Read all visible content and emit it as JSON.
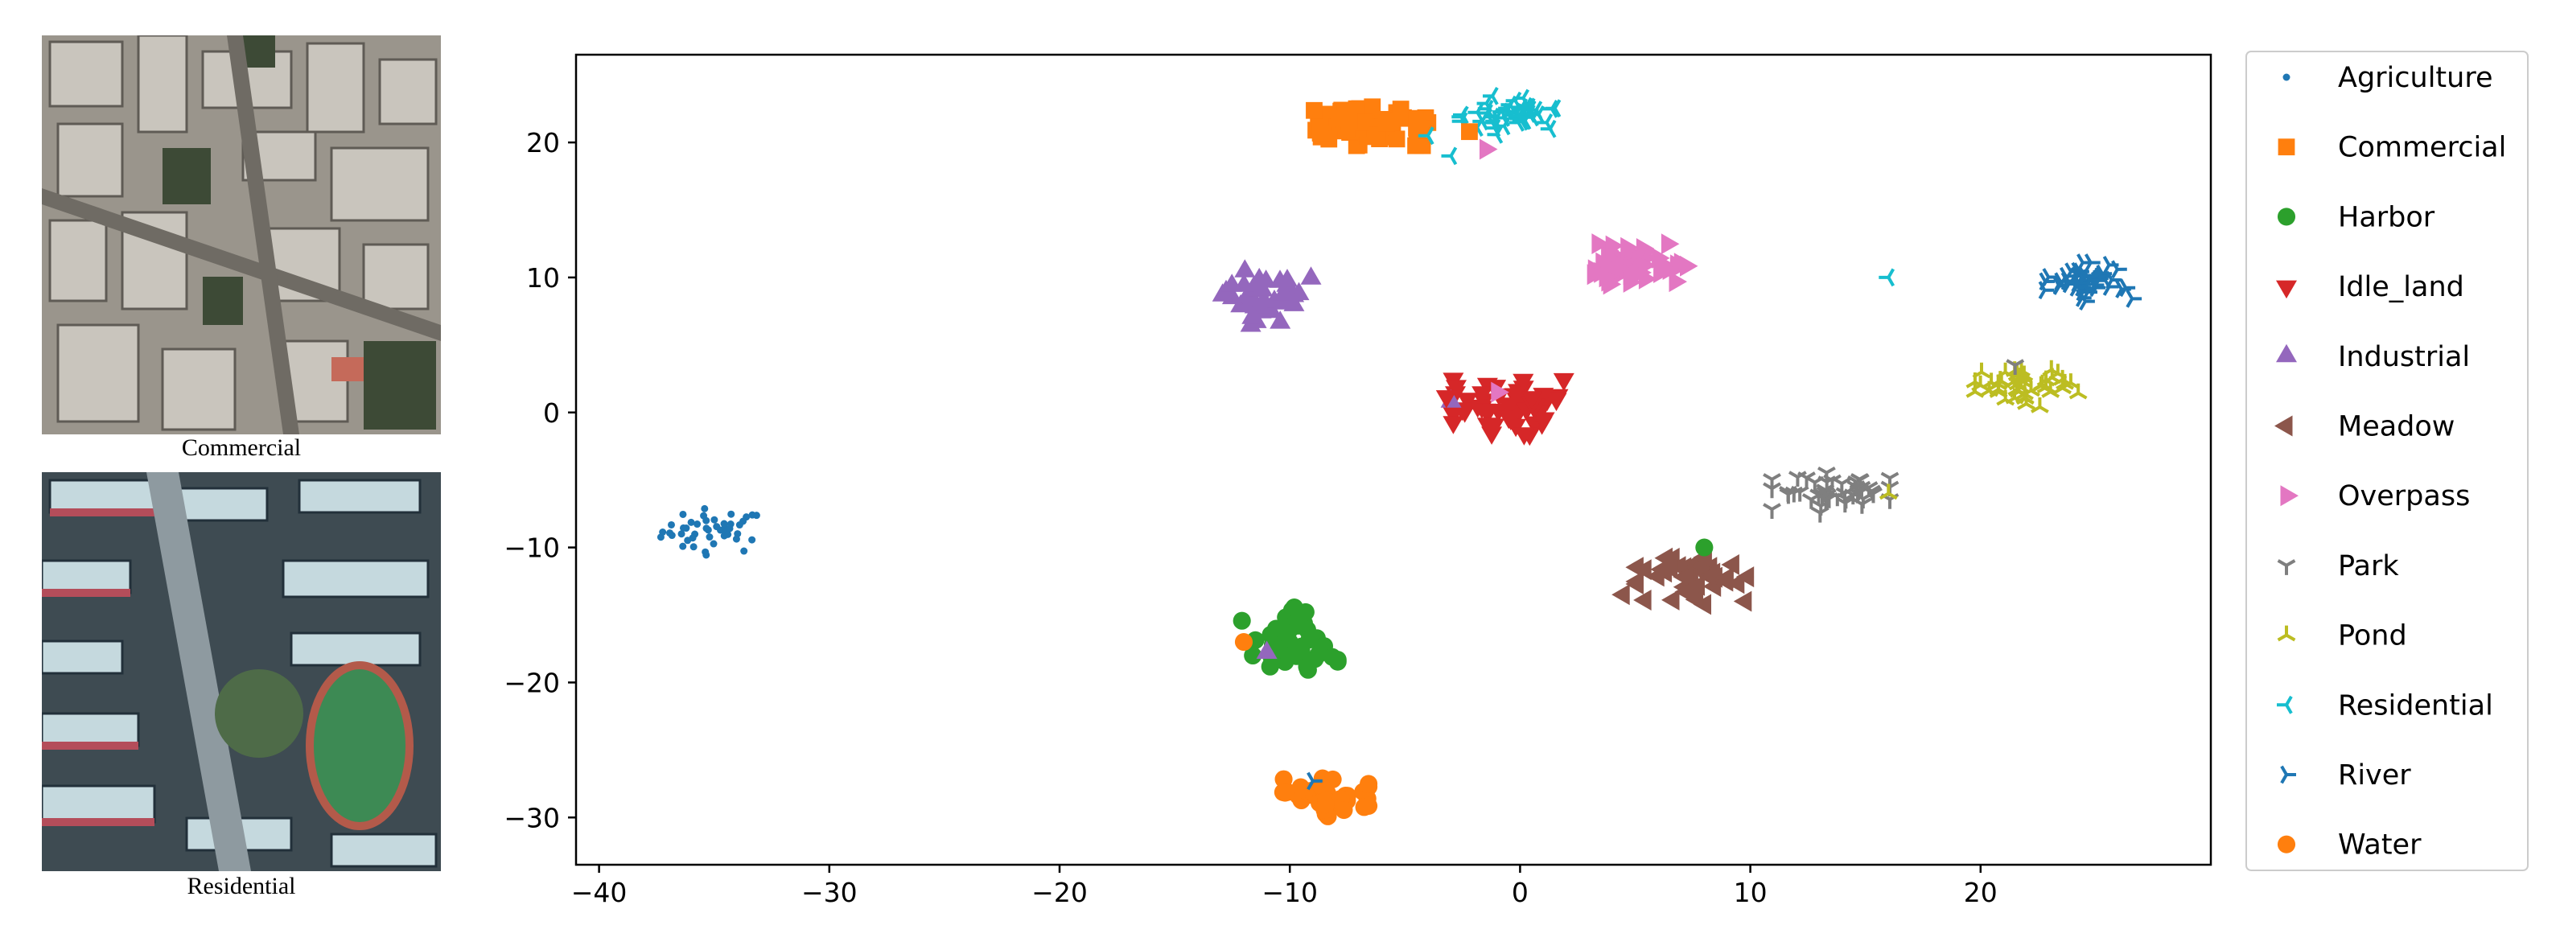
{
  "panels": [
    {
      "caption": "Commercial",
      "image": "aerial-commercial-image"
    },
    {
      "caption": "Residential",
      "image": "aerial-residential-image"
    }
  ],
  "chart_data": {
    "type": "scatter",
    "title": "",
    "xlabel": "",
    "ylabel": "",
    "xlim": [
      -41,
      30
    ],
    "ylim": [
      -33.5,
      26.5
    ],
    "xticks": [
      -40,
      -30,
      -20,
      -10,
      0,
      10,
      20
    ],
    "yticks": [
      -30,
      -20,
      -10,
      0,
      10,
      20
    ],
    "grid": false,
    "legend_position": "outside-right",
    "series": [
      {
        "name": "Agriculture",
        "color": "#1f77b4",
        "marker": "point",
        "center": [
          -35,
          -8.8
        ],
        "spread": [
          1.5,
          1.1
        ],
        "count": 45
      },
      {
        "name": "Commercial",
        "color": "#ff7f0e",
        "marker": "square",
        "center": [
          -7.5,
          21.2
        ],
        "spread": [
          3.2,
          0.9
        ],
        "count": 75
      },
      {
        "name": "Harbor",
        "color": "#2ca02c",
        "marker": "circle",
        "center": [
          -10,
          -17
        ],
        "spread": [
          1.3,
          1.6
        ],
        "count": 45
      },
      {
        "name": "Idle_land",
        "color": "#d62728",
        "marker": "triangle-down",
        "center": [
          -0.5,
          0.5
        ],
        "spread": [
          1.5,
          1.3
        ],
        "count": 55
      },
      {
        "name": "Industrial",
        "color": "#9467bd",
        "marker": "triangle-up",
        "center": [
          -11,
          8.5
        ],
        "spread": [
          1.2,
          1.3
        ],
        "count": 40
      },
      {
        "name": "Meadow",
        "color": "#8c564b",
        "marker": "triangle-left",
        "center": [
          7.5,
          -12.5
        ],
        "spread": [
          1.5,
          1.1
        ],
        "count": 45
      },
      {
        "name": "Overpass",
        "color": "#e377c2",
        "marker": "triangle-right",
        "center": [
          4.8,
          11
        ],
        "spread": [
          1.5,
          1.1
        ],
        "count": 50
      },
      {
        "name": "Park",
        "color": "#7f7f7f",
        "marker": "tri-down",
        "center": [
          13.5,
          -6
        ],
        "spread": [
          1.6,
          1.0
        ],
        "count": 45
      },
      {
        "name": "Pond",
        "color": "#bcbd22",
        "marker": "tri-up",
        "center": [
          22,
          2
        ],
        "spread": [
          1.4,
          1.0
        ],
        "count": 45
      },
      {
        "name": "Residential",
        "color": "#17becf",
        "marker": "tri-left",
        "center": [
          -0.5,
          22
        ],
        "spread": [
          1.5,
          0.9
        ],
        "count": 45
      },
      {
        "name": "River",
        "color": "#1f77b4",
        "marker": "tri-right",
        "center": [
          24.5,
          9.5
        ],
        "spread": [
          1.3,
          1.0
        ],
        "count": 45
      },
      {
        "name": "Water",
        "color": "#ff7f0e",
        "marker": "circle",
        "center": [
          -8.5,
          -28.5
        ],
        "spread": [
          1.2,
          0.9
        ],
        "count": 45
      }
    ],
    "outliers": [
      {
        "series": "Commercial",
        "marker": "square",
        "color": "#ff7f0e",
        "x": -2.2,
        "y": 20.8
      },
      {
        "series": "Overpass",
        "marker": "triangle-right",
        "color": "#e377c2",
        "x": -1.5,
        "y": 19.5
      },
      {
        "series": "Residential",
        "marker": "tri-left",
        "color": "#17becf",
        "x": -3.0,
        "y": 19.0
      },
      {
        "series": "Residential",
        "marker": "tri-left",
        "color": "#17becf",
        "x": -4.0,
        "y": 20.5
      },
      {
        "series": "Industrial",
        "marker": "triangle-up",
        "color": "#9467bd",
        "x": -3.0,
        "y": 0.8
      },
      {
        "series": "Idle_land",
        "marker": "triangle-down",
        "color": "#d62728",
        "x": -3.2,
        "y": 1.2
      },
      {
        "series": "Overpass",
        "marker": "triangle-right",
        "color": "#e377c2",
        "x": -1.0,
        "y": 1.5
      },
      {
        "series": "Residential",
        "marker": "tri-left",
        "color": "#17becf",
        "x": 16,
        "y": 10
      },
      {
        "series": "Park",
        "marker": "tri-down",
        "color": "#7f7f7f",
        "x": 21.5,
        "y": 3.5
      },
      {
        "series": "Pond",
        "marker": "tri-up",
        "color": "#bcbd22",
        "x": 16,
        "y": -6
      },
      {
        "series": "Harbor",
        "marker": "circle",
        "color": "#2ca02c",
        "x": 8,
        "y": -10
      },
      {
        "series": "Meadow",
        "marker": "triangle-left",
        "color": "#8c564b",
        "x": 4.5,
        "y": -13.5
      },
      {
        "series": "Water",
        "marker": "circle",
        "color": "#ff7f0e",
        "x": -12,
        "y": -17
      },
      {
        "series": "Industrial",
        "marker": "triangle-up",
        "color": "#9467bd",
        "x": -11,
        "y": -17.8
      },
      {
        "series": "River",
        "marker": "tri-right",
        "color": "#1f77b4",
        "x": -9,
        "y": -27.3
      }
    ]
  }
}
